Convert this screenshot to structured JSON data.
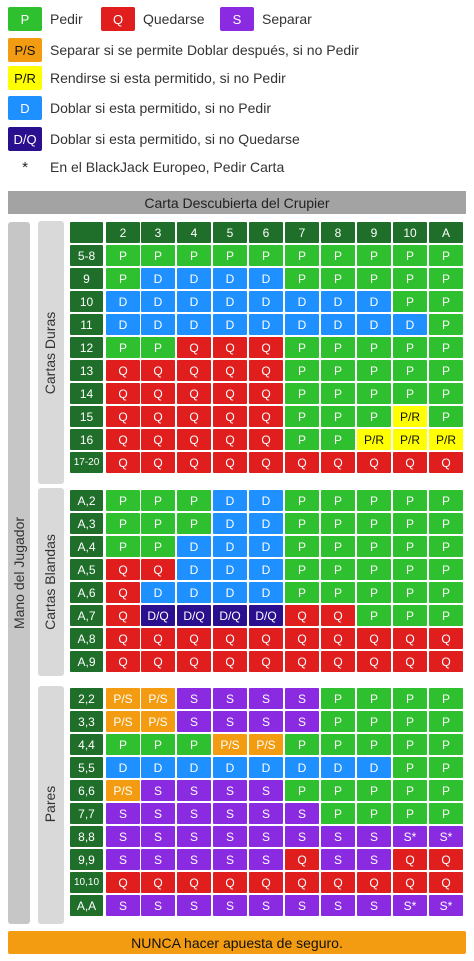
{
  "colors": {
    "P": "#2ec02e",
    "Q": "#e01e1e",
    "S": "#8a2be2",
    "P/S": "#f39c12",
    "P/R": "#ffff00",
    "D": "#1e90ff",
    "D/Q": "#2a0f8f",
    "header_green": "#1f6e2a",
    "footer_orange": "#f39c12"
  },
  "legend": {
    "p": {
      "code": "P",
      "label": "Pedir"
    },
    "q": {
      "code": "Q",
      "label": "Quedarse"
    },
    "s": {
      "code": "S",
      "label": "Separar"
    },
    "ps": {
      "code": "P/S",
      "label": "Separar si se permite Doblar después, si no Pedir"
    },
    "pr": {
      "code": "P/R",
      "label": "Rendirse si esta permitido, si no Pedir"
    },
    "d": {
      "code": "D",
      "label": "Doblar si esta permitido, si no Pedir"
    },
    "dq": {
      "code": "D/Q",
      "label": "Doblar si esta permitido, si no Quedarse"
    },
    "star": {
      "code": "*",
      "label": "En el BlackJack Europeo, Pedir Carta"
    }
  },
  "dealer_header": "Carta Descubierta del Crupier",
  "player_label": "Mano del Jugador",
  "dealer_cards": [
    "2",
    "3",
    "4",
    "5",
    "6",
    "7",
    "8",
    "9",
    "10",
    "A"
  ],
  "sections": [
    {
      "title": "Cartas Duras",
      "rows": [
        {
          "hand": "5-8",
          "cells": [
            "P",
            "P",
            "P",
            "P",
            "P",
            "P",
            "P",
            "P",
            "P",
            "P"
          ]
        },
        {
          "hand": "9",
          "cells": [
            "P",
            "D",
            "D",
            "D",
            "D",
            "P",
            "P",
            "P",
            "P",
            "P"
          ]
        },
        {
          "hand": "10",
          "cells": [
            "D",
            "D",
            "D",
            "D",
            "D",
            "D",
            "D",
            "D",
            "P",
            "P"
          ]
        },
        {
          "hand": "11",
          "cells": [
            "D",
            "D",
            "D",
            "D",
            "D",
            "D",
            "D",
            "D",
            "D",
            "P"
          ]
        },
        {
          "hand": "12",
          "cells": [
            "P",
            "P",
            "Q",
            "Q",
            "Q",
            "P",
            "P",
            "P",
            "P",
            "P"
          ]
        },
        {
          "hand": "13",
          "cells": [
            "Q",
            "Q",
            "Q",
            "Q",
            "Q",
            "P",
            "P",
            "P",
            "P",
            "P"
          ]
        },
        {
          "hand": "14",
          "cells": [
            "Q",
            "Q",
            "Q",
            "Q",
            "Q",
            "P",
            "P",
            "P",
            "P",
            "P"
          ]
        },
        {
          "hand": "15",
          "cells": [
            "Q",
            "Q",
            "Q",
            "Q",
            "Q",
            "P",
            "P",
            "P",
            "P/R",
            "P"
          ]
        },
        {
          "hand": "16",
          "cells": [
            "Q",
            "Q",
            "Q",
            "Q",
            "Q",
            "P",
            "P",
            "P/R",
            "P/R",
            "P/R"
          ]
        },
        {
          "hand": "17-20",
          "cells": [
            "Q",
            "Q",
            "Q",
            "Q",
            "Q",
            "Q",
            "Q",
            "Q",
            "Q",
            "Q"
          ]
        }
      ]
    },
    {
      "title": "Cartas Blandas",
      "rows": [
        {
          "hand": "A,2",
          "cells": [
            "P",
            "P",
            "P",
            "D",
            "D",
            "P",
            "P",
            "P",
            "P",
            "P"
          ]
        },
        {
          "hand": "A,3",
          "cells": [
            "P",
            "P",
            "P",
            "D",
            "D",
            "P",
            "P",
            "P",
            "P",
            "P"
          ]
        },
        {
          "hand": "A,4",
          "cells": [
            "P",
            "P",
            "D",
            "D",
            "D",
            "P",
            "P",
            "P",
            "P",
            "P"
          ]
        },
        {
          "hand": "A,5",
          "cells": [
            "Q",
            "Q",
            "D",
            "D",
            "D",
            "P",
            "P",
            "P",
            "P",
            "P"
          ]
        },
        {
          "hand": "A,6",
          "cells": [
            "Q",
            "D",
            "D",
            "D",
            "D",
            "P",
            "P",
            "P",
            "P",
            "P"
          ]
        },
        {
          "hand": "A,7",
          "cells": [
            "Q",
            "D/Q",
            "D/Q",
            "D/Q",
            "D/Q",
            "Q",
            "Q",
            "P",
            "P",
            "P"
          ]
        },
        {
          "hand": "A,8",
          "cells": [
            "Q",
            "Q",
            "Q",
            "Q",
            "Q",
            "Q",
            "Q",
            "Q",
            "Q",
            "Q"
          ]
        },
        {
          "hand": "A,9",
          "cells": [
            "Q",
            "Q",
            "Q",
            "Q",
            "Q",
            "Q",
            "Q",
            "Q",
            "Q",
            "Q"
          ]
        }
      ]
    },
    {
      "title": "Pares",
      "rows": [
        {
          "hand": "2,2",
          "cells": [
            "P/S",
            "P/S",
            "S",
            "S",
            "S",
            "S",
            "P",
            "P",
            "P",
            "P"
          ]
        },
        {
          "hand": "3,3",
          "cells": [
            "P/S",
            "P/S",
            "S",
            "S",
            "S",
            "S",
            "P",
            "P",
            "P",
            "P"
          ]
        },
        {
          "hand": "4,4",
          "cells": [
            "P",
            "P",
            "P",
            "P/S",
            "P/S",
            "P",
            "P",
            "P",
            "P",
            "P"
          ]
        },
        {
          "hand": "5,5",
          "cells": [
            "D",
            "D",
            "D",
            "D",
            "D",
            "D",
            "D",
            "D",
            "P",
            "P"
          ]
        },
        {
          "hand": "6,6",
          "cells": [
            "P/S",
            "S",
            "S",
            "S",
            "S",
            "P",
            "P",
            "P",
            "P",
            "P"
          ]
        },
        {
          "hand": "7,7",
          "cells": [
            "S",
            "S",
            "S",
            "S",
            "S",
            "S",
            "P",
            "P",
            "P",
            "P"
          ]
        },
        {
          "hand": "8,8",
          "cells": [
            "S",
            "S",
            "S",
            "S",
            "S",
            "S",
            "S",
            "S",
            "S*",
            "S*"
          ]
        },
        {
          "hand": "9,9",
          "cells": [
            "S",
            "S",
            "S",
            "S",
            "S",
            "Q",
            "S",
            "S",
            "Q",
            "Q"
          ]
        },
        {
          "hand": "10,10",
          "cells": [
            "Q",
            "Q",
            "Q",
            "Q",
            "Q",
            "Q",
            "Q",
            "Q",
            "Q",
            "Q"
          ]
        },
        {
          "hand": "A,A",
          "cells": [
            "S",
            "S",
            "S",
            "S",
            "S",
            "S",
            "S",
            "S",
            "S*",
            "S*"
          ]
        }
      ]
    }
  ],
  "footer": "NUNCA hacer apuesta de seguro."
}
